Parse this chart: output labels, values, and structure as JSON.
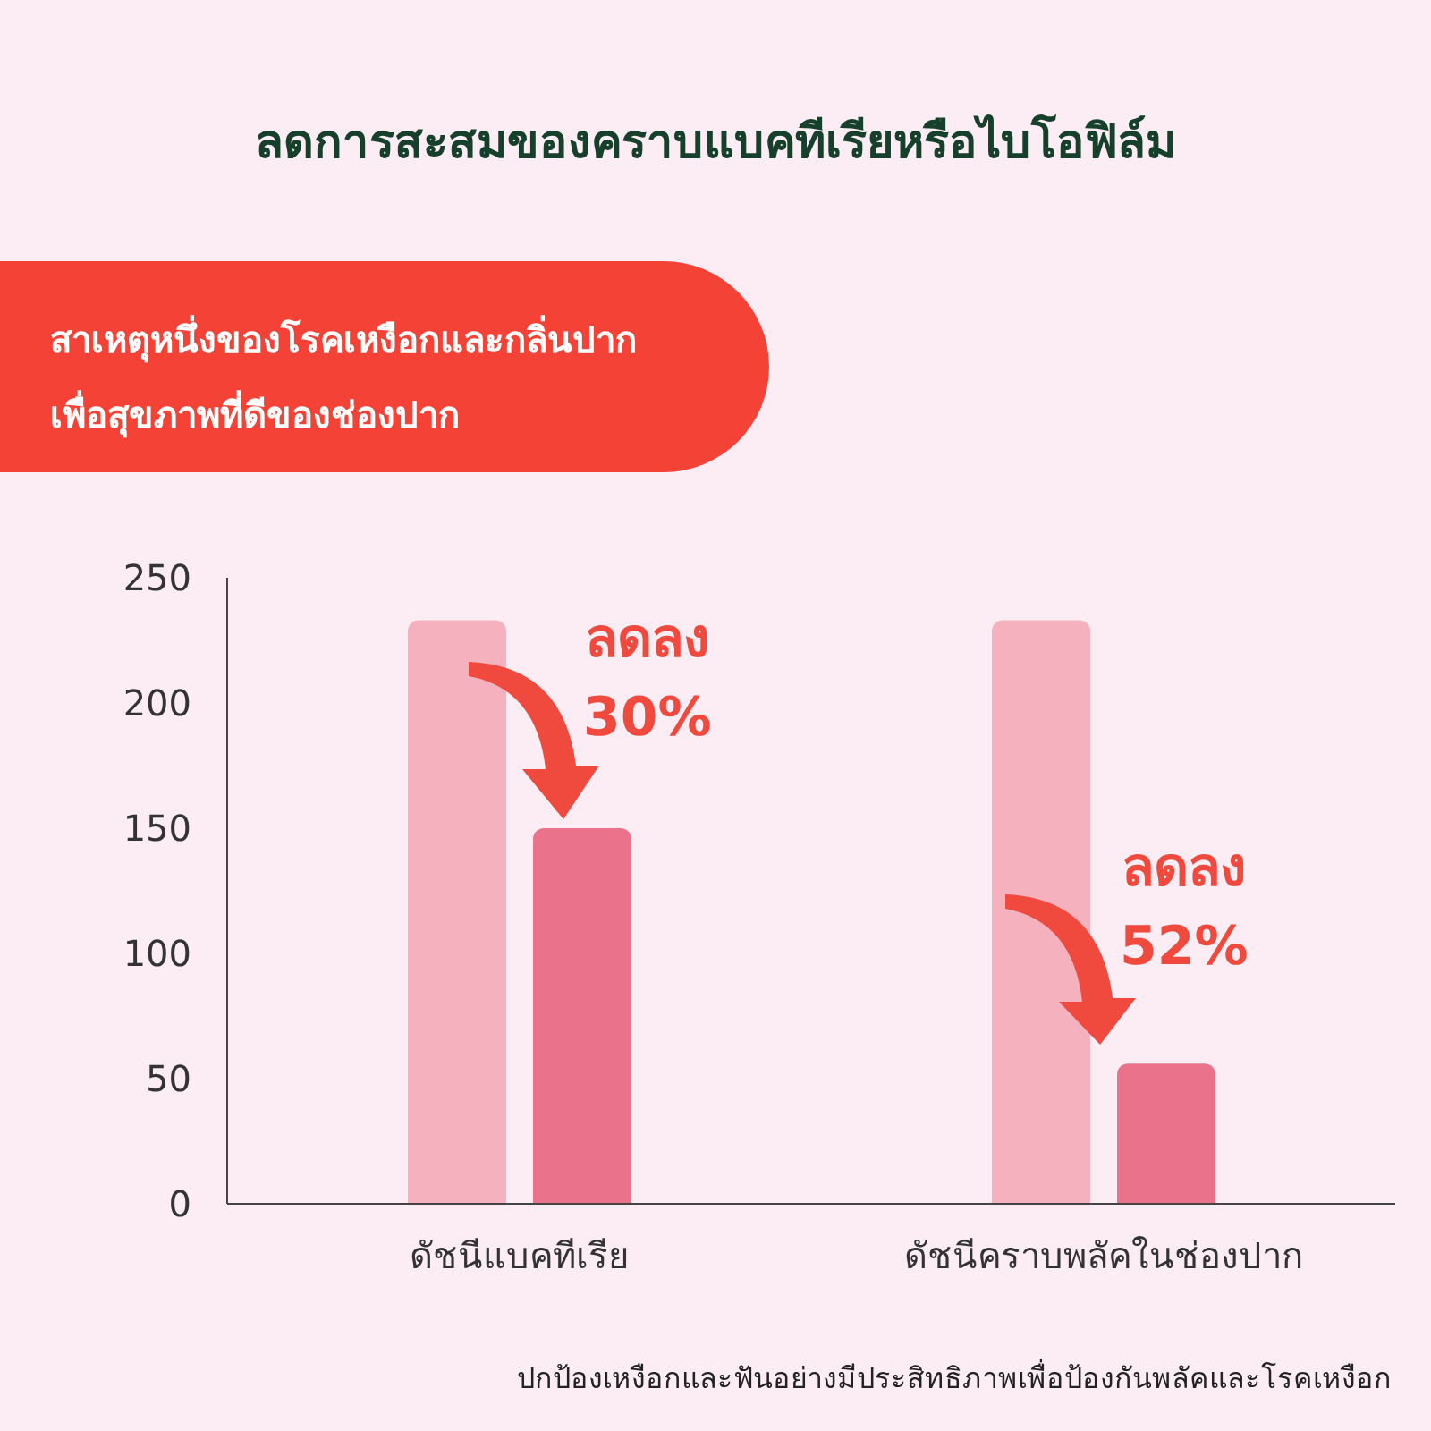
{
  "chart_data": {
    "type": "bar",
    "title": "ลดการสะสมของคราบแบคทีเรียหรือไบโอฟิล์ม",
    "subtitle": "สาเหตุหนึ่งของโรคเหงือกและกลิ่นปาก\nเพื่อสุขภาพที่ดีของช่องปาก",
    "categories": [
      "ดัชนีแบคทีเรีย",
      "ดัชนีคราบพลัคในช่องปาก"
    ],
    "series": [
      {
        "color": "#f5b1bd",
        "values": [
          233,
          233
        ]
      },
      {
        "color": "#ea728b",
        "values": [
          150,
          56
        ]
      }
    ],
    "ylim": [
      0,
      250
    ],
    "yticks": [
      0,
      50,
      100,
      150,
      200,
      250
    ],
    "grid": false,
    "annotations": [
      "ลดลง\n30%",
      "ลดลง\n52%",
      "ปกป้องเหงือกและฟันอย่างมีประสิทธิภาพเพื่อป้องกันพลัคและโรคเหงือก"
    ]
  }
}
